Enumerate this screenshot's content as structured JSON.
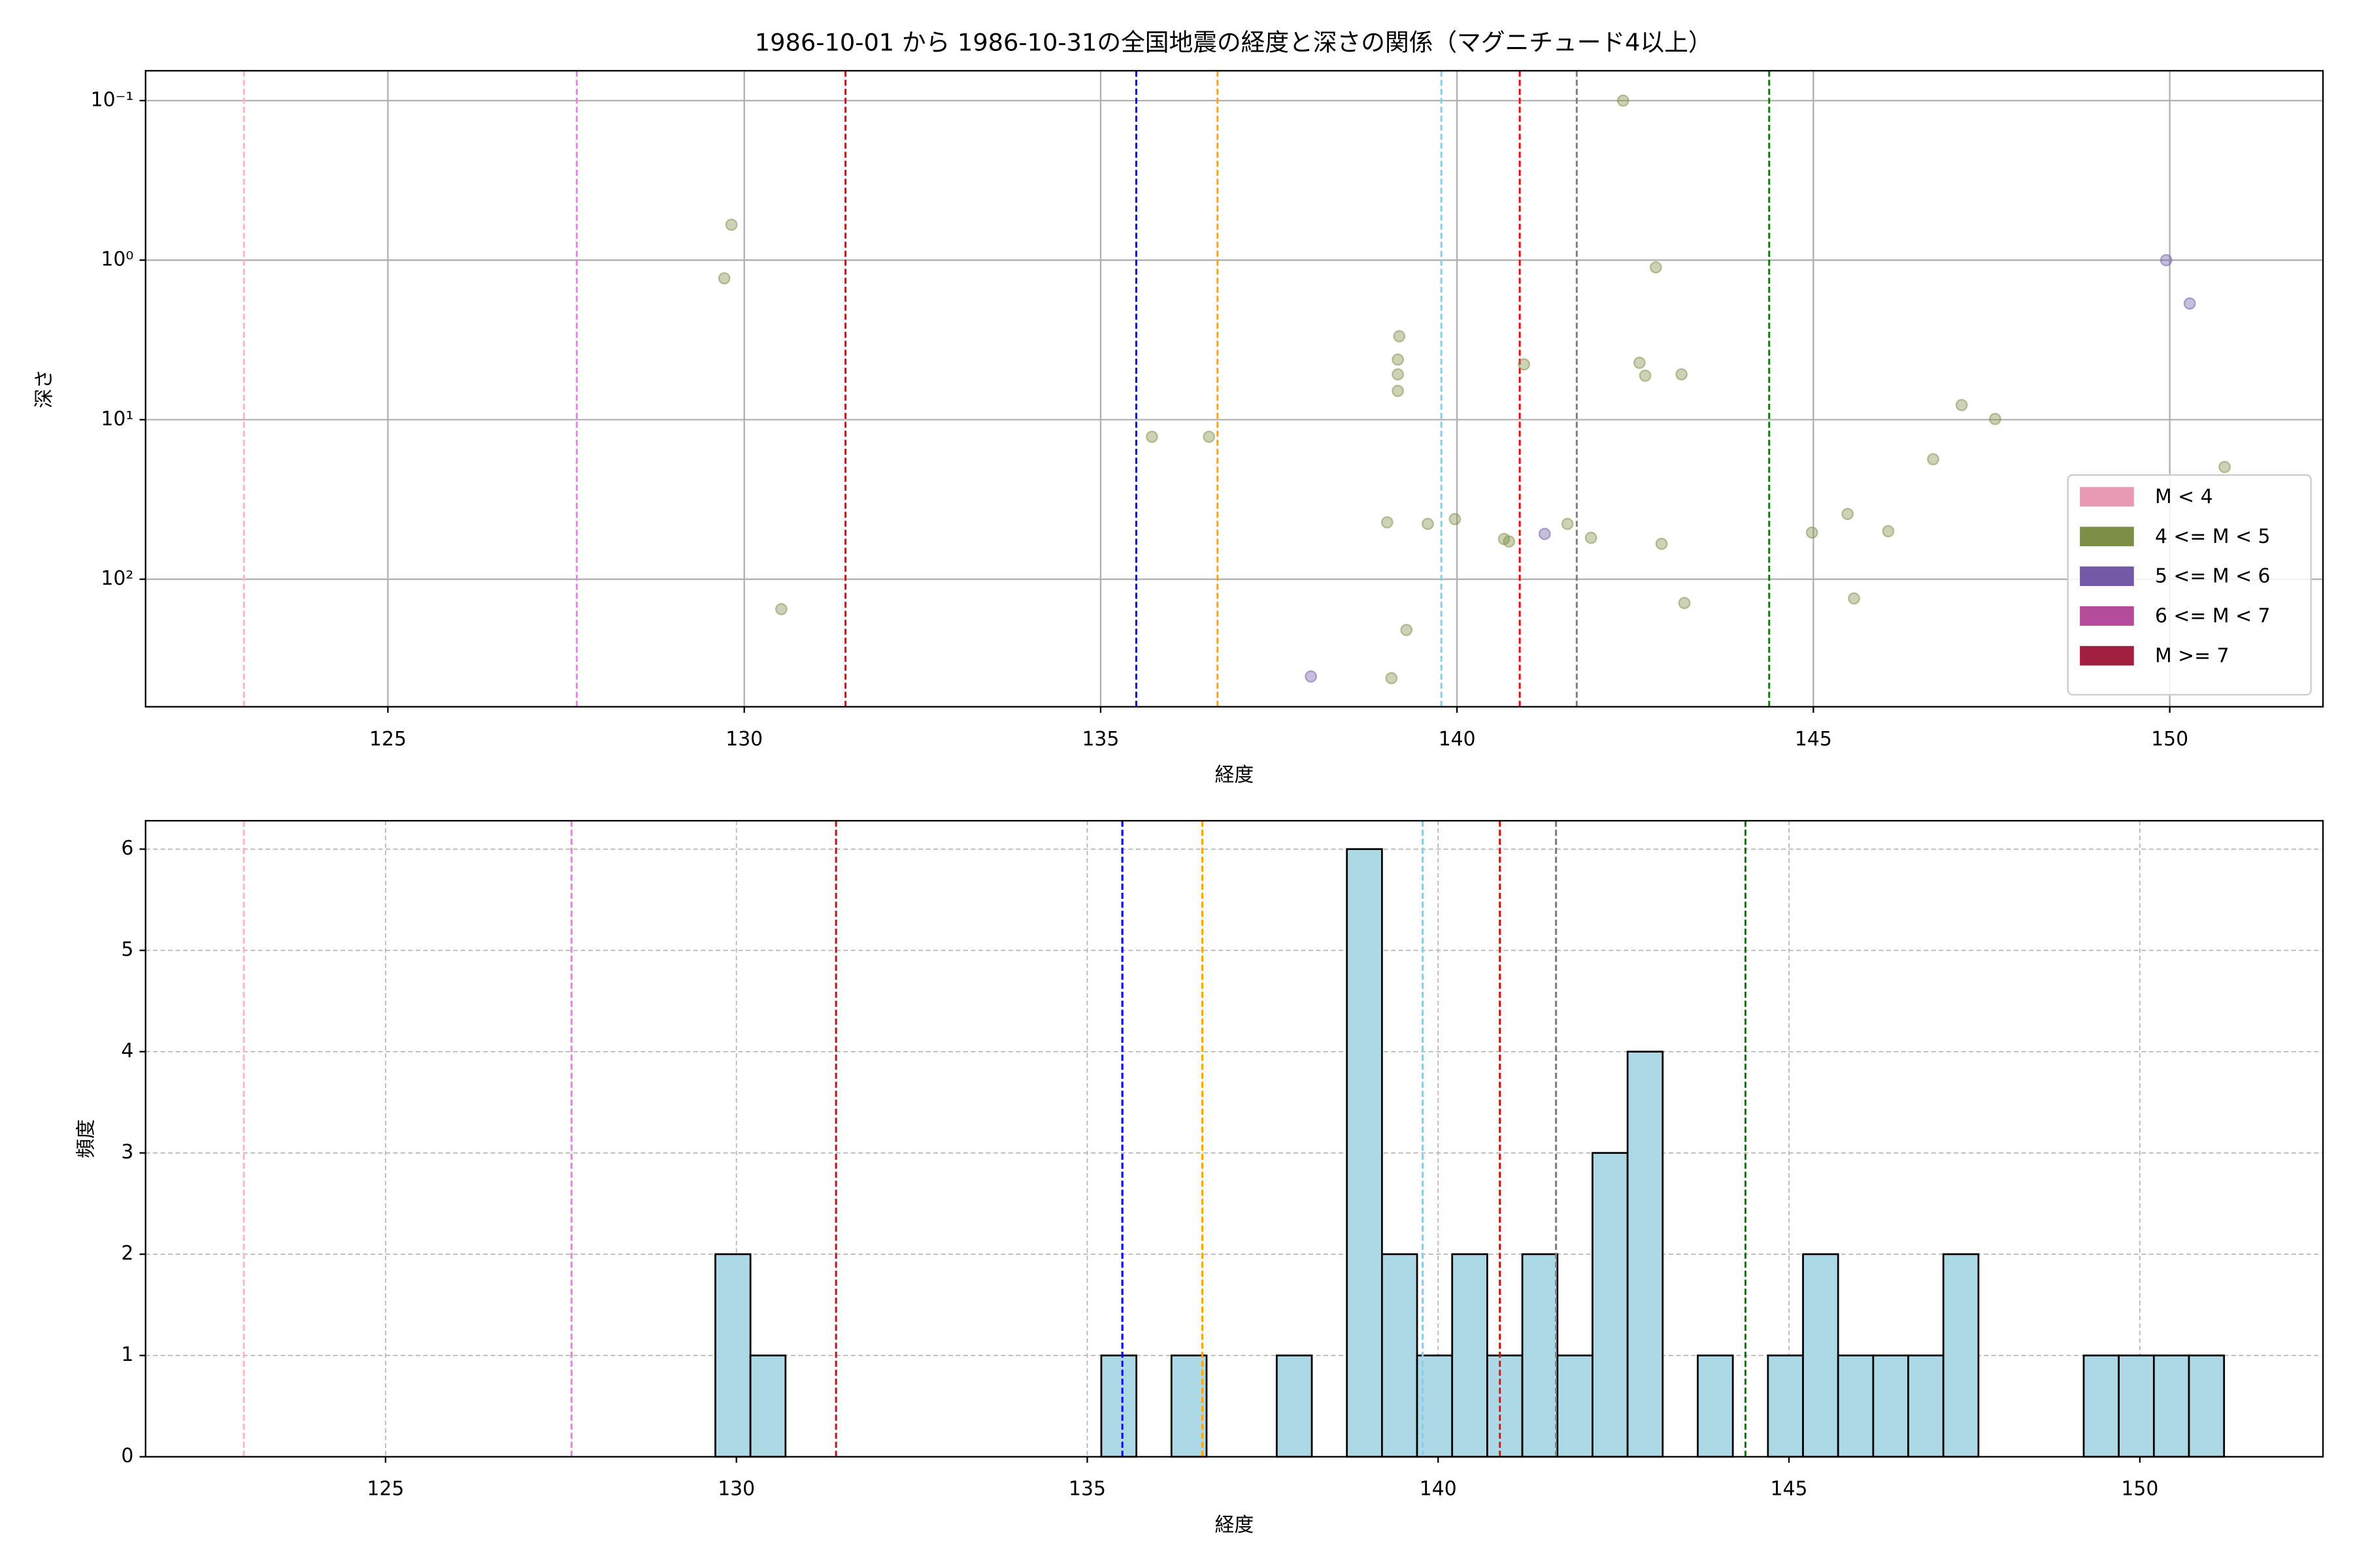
{
  "chart_data": [
    {
      "type": "scatter",
      "title": "1986-10-01 から 1986-10-31の全国地震の経度と深さの関係（マグニチュード4以上）",
      "x_label": "経度",
      "y_label": "深さ",
      "xlim": [
        121.6,
        152.15
      ],
      "xticks": [
        125,
        130,
        135,
        140,
        145,
        150
      ],
      "ylim": [
        0.065,
        630
      ],
      "y_scale": "log",
      "y_inverted": true,
      "yticks": [
        {
          "value": 0.1,
          "label": "10⁻¹"
        },
        {
          "value": 1,
          "label": "10⁰"
        },
        {
          "value": 10,
          "label": "10¹"
        },
        {
          "value": 100,
          "label": "10²"
        }
      ],
      "grid": true,
      "grid_style": "solid",
      "legend": "lower right",
      "reference_lines": [
        {
          "x": 122.98,
          "color": "#ffb6c1"
        },
        {
          "x": 127.65,
          "color": "#ee82ee"
        },
        {
          "x": 131.42,
          "color": "#b22222"
        },
        {
          "x": 135.5,
          "color": "#0000ff"
        },
        {
          "x": 136.64,
          "color": "#ffa500"
        },
        {
          "x": 139.78,
          "color": "#87ceeb"
        },
        {
          "x": 140.88,
          "color": "#ff0000"
        },
        {
          "x": 141.68,
          "color": "#808080"
        },
        {
          "x": 144.38,
          "color": "#008000"
        }
      ],
      "series": [
        {
          "name": "M < 4",
          "color": "#e899b4",
          "x": [],
          "values": []
        },
        {
          "name": "4 <= M < 5",
          "color": "#7d8f47",
          "x": [
            129.72,
            129.82,
            130.52,
            135.72,
            136.52,
            142.33,
            142.79,
            139.19,
            139.17,
            139.17,
            139.17,
            140.94,
            142.56,
            142.64,
            143.15,
            147.08,
            147.55,
            146.68,
            150.77,
            139.02,
            139.59,
            139.97,
            140.66,
            140.73,
            141.55,
            141.88,
            142.87,
            144.98,
            145.48,
            146.05,
            139.29,
            143.19,
            145.57,
            139.08
          ],
          "values": [
            1.3,
            0.6,
            154,
            12.8,
            12.8,
            0.1,
            1.11,
            3.0,
            4.2,
            5.2,
            6.6,
            4.5,
            4.4,
            5.3,
            5.2,
            8.1,
            9.9,
            17.7,
            19.8,
            44,
            45,
            42,
            56,
            58,
            45,
            55,
            60,
            51,
            39,
            50,
            208,
            141,
            132,
            417
          ]
        },
        {
          "name": "5 <= M < 6",
          "color": "#7459a8",
          "x": [
            137.95,
            141.23,
            149.95,
            150.28
          ],
          "values": [
            407,
            52,
            1.0,
            1.87
          ]
        },
        {
          "name": "6 <= M < 7",
          "color": "#b44b9b",
          "x": [],
          "values": []
        },
        {
          "name": "M >= 7",
          "color": "#a31f40",
          "x": [],
          "values": []
        }
      ]
    },
    {
      "type": "histogram",
      "x_label": "経度",
      "y_label": "頻度",
      "xlim": [
        121.58,
        152.61
      ],
      "xticks": [
        125,
        130,
        135,
        140,
        145,
        150
      ],
      "ylim": [
        0,
        6.28
      ],
      "yticks": [
        0,
        1,
        2,
        3,
        4,
        5,
        6
      ],
      "grid": true,
      "grid_style": "dashed",
      "color": "#add8e6",
      "reference_lines": [
        {
          "x": 122.98,
          "color": "#ffb6c1"
        },
        {
          "x": 127.65,
          "color": "#ee82ee"
        },
        {
          "x": 131.42,
          "color": "#b22222"
        },
        {
          "x": 135.5,
          "color": "#0000ff"
        },
        {
          "x": 136.64,
          "color": "#ffa500"
        },
        {
          "x": 139.78,
          "color": "#87ceeb"
        },
        {
          "x": 140.88,
          "color": "#ff0000"
        },
        {
          "x": 141.68,
          "color": "#808080"
        },
        {
          "x": 144.38,
          "color": "#008000"
        }
      ],
      "bins": [
        129.7,
        130.2,
        130.7,
        131.2,
        131.7,
        132.2,
        132.7,
        133.2,
        133.7,
        134.2,
        134.7,
        135.2,
        135.7,
        136.2,
        136.7,
        137.2,
        137.7,
        138.2,
        138.7,
        139.2,
        139.7,
        140.2,
        140.7,
        141.2,
        141.7,
        142.2,
        142.7,
        143.2,
        143.7,
        144.2,
        144.7,
        145.2,
        145.7,
        146.2,
        146.7,
        147.2,
        147.7,
        148.2,
        148.7,
        149.2,
        149.7,
        150.2,
        150.7,
        151.2
      ],
      "values": [
        2,
        1,
        0,
        0,
        0,
        0,
        0,
        0,
        0,
        0,
        0,
        1,
        0,
        1,
        0,
        0,
        1,
        0,
        6,
        2,
        1,
        2,
        1,
        2,
        1,
        3,
        4,
        0,
        1,
        0,
        1,
        2,
        1,
        1,
        1,
        2,
        0,
        0,
        0,
        1,
        1,
        1,
        1
      ]
    }
  ]
}
